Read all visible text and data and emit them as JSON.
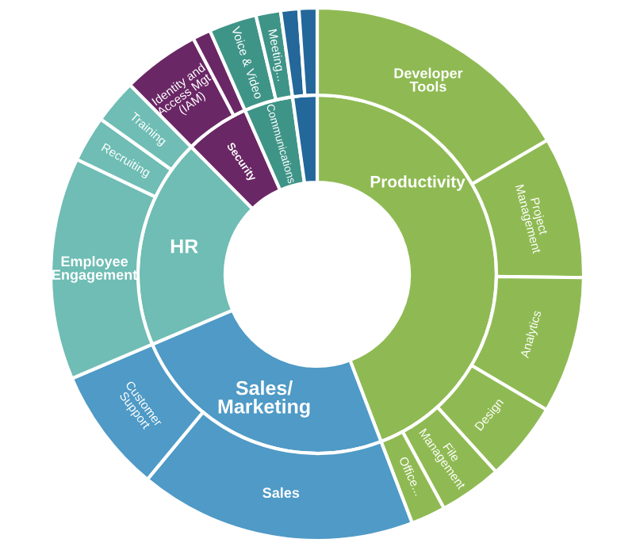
{
  "chart_data": {
    "type": "donut",
    "series": [
      {
        "values": [
          44.2,
          24.4,
          19.0,
          5.8,
          4.4,
          2.2
        ],
        "colors": [
          "#8fba53",
          "#4f9ac6",
          "#6fbdb4",
          "#6a2765",
          "#3f9488",
          "#23679b"
        ],
        "value_labels": [
          "Productivity",
          "Sales/\nMarketing",
          "HR",
          "Security",
          "Communications",
          null
        ]
      },
      {
        "values": [
          16.6,
          8.6,
          8.3,
          4.8,
          3.8,
          2.1,
          16.8,
          7.6,
          13.5,
          2.8,
          2.7,
          4.7,
          1.1,
          2.9,
          1.5,
          1.1,
          1.1
        ],
        "colors": [
          "#8fba53",
          "#8fba53",
          "#8fba53",
          "#8fba53",
          "#8fba53",
          "#8fba53",
          "#4f9ac6",
          "#4f9ac6",
          "#6fbdb4",
          "#6fbdb4",
          "#6fbdb4",
          "#6a2765",
          "#6a2765",
          "#3f9488",
          "#3f9488",
          "#23679b",
          "#23679b"
        ],
        "value_labels": [
          "Developer\nTools",
          "Project\nManagement",
          "Analytics",
          "Design",
          "File\nManagement",
          "Office...",
          "Sales",
          "Customer\nSupport",
          "Employee\nEngagement",
          "Recruiting",
          "Training",
          "Identity and\nAccess Mgt.\n(IAM)",
          null,
          "Voice & Video",
          "Meeting...",
          null,
          null
        ]
      }
    ]
  }
}
